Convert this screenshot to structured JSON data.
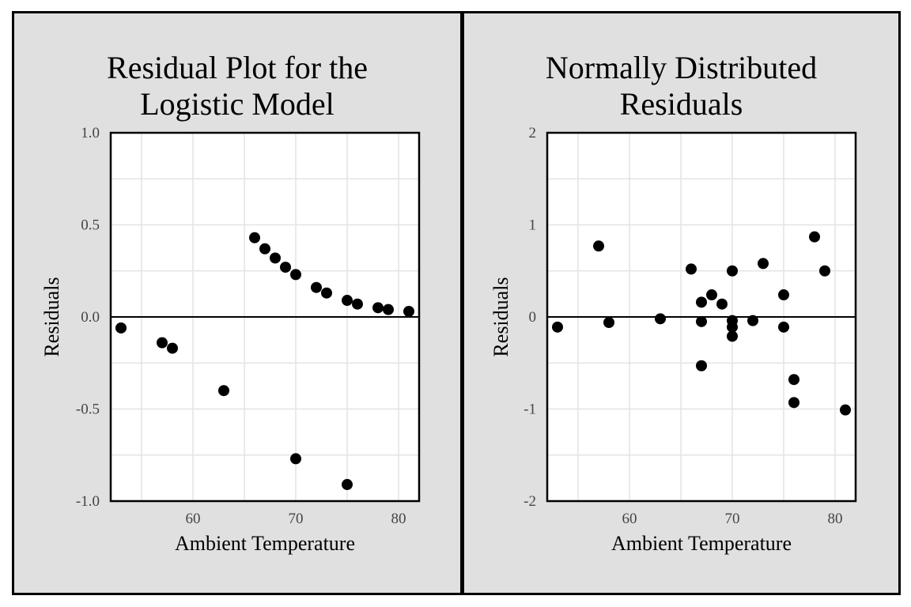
{
  "chart_data": [
    {
      "type": "scatter",
      "title_lines": [
        "Residual Plot for the",
        "Logistic Model"
      ],
      "xlabel": "Ambient Temperature",
      "ylabel": "Residuals",
      "xlim": [
        52,
        82
      ],
      "ylim": [
        -1.0,
        1.0
      ],
      "xticks": [
        60,
        70,
        80
      ],
      "yticks": [
        -1.0,
        -0.5,
        0.0,
        0.5,
        1.0
      ],
      "ytick_labels": [
        "-1.0",
        "-0.5",
        "0.0",
        "0.5",
        "1.0"
      ],
      "grid": true,
      "zero_line": true,
      "marker_color": "#000000",
      "points": [
        {
          "x": 53,
          "y": -0.06
        },
        {
          "x": 57,
          "y": -0.14
        },
        {
          "x": 58,
          "y": -0.17
        },
        {
          "x": 63,
          "y": -0.4
        },
        {
          "x": 66,
          "y": 0.43
        },
        {
          "x": 67,
          "y": 0.37
        },
        {
          "x": 68,
          "y": 0.32
        },
        {
          "x": 69,
          "y": 0.27
        },
        {
          "x": 70,
          "y": 0.23
        },
        {
          "x": 70,
          "y": -0.77
        },
        {
          "x": 72,
          "y": 0.16
        },
        {
          "x": 73,
          "y": 0.13
        },
        {
          "x": 75,
          "y": 0.09
        },
        {
          "x": 75,
          "y": -0.91
        },
        {
          "x": 76,
          "y": 0.07
        },
        {
          "x": 78,
          "y": 0.05
        },
        {
          "x": 79,
          "y": 0.04
        },
        {
          "x": 81,
          "y": 0.03
        }
      ]
    },
    {
      "type": "scatter",
      "title_lines": [
        "Normally Distributed",
        "Residuals"
      ],
      "xlabel": "Ambient Temperature",
      "ylabel": "Residuals",
      "xlim": [
        52,
        82
      ],
      "ylim": [
        -2,
        2
      ],
      "xticks": [
        60,
        70,
        80
      ],
      "yticks": [
        -2,
        -1,
        0,
        1,
        2
      ],
      "ytick_labels": [
        "-2",
        "-1",
        "0",
        "1",
        "2"
      ],
      "grid": true,
      "zero_line": true,
      "marker_color": "#000000",
      "points": [
        {
          "x": 53,
          "y": -0.11
        },
        {
          "x": 57,
          "y": 0.77
        },
        {
          "x": 58,
          "y": -0.06
        },
        {
          "x": 63,
          "y": -0.02
        },
        {
          "x": 66,
          "y": 0.52
        },
        {
          "x": 67,
          "y": 0.16
        },
        {
          "x": 67,
          "y": -0.05
        },
        {
          "x": 67,
          "y": -0.53
        },
        {
          "x": 68,
          "y": 0.24
        },
        {
          "x": 69,
          "y": 0.14
        },
        {
          "x": 70,
          "y": 0.5
        },
        {
          "x": 70,
          "y": -0.04
        },
        {
          "x": 70,
          "y": -0.11
        },
        {
          "x": 70,
          "y": -0.21
        },
        {
          "x": 72,
          "y": -0.04
        },
        {
          "x": 73,
          "y": 0.58
        },
        {
          "x": 75,
          "y": 0.24
        },
        {
          "x": 75,
          "y": -0.11
        },
        {
          "x": 76,
          "y": -0.68
        },
        {
          "x": 76,
          "y": -0.93
        },
        {
          "x": 78,
          "y": 0.87
        },
        {
          "x": 79,
          "y": 0.5
        },
        {
          "x": 81,
          "y": -1.01
        }
      ]
    }
  ]
}
